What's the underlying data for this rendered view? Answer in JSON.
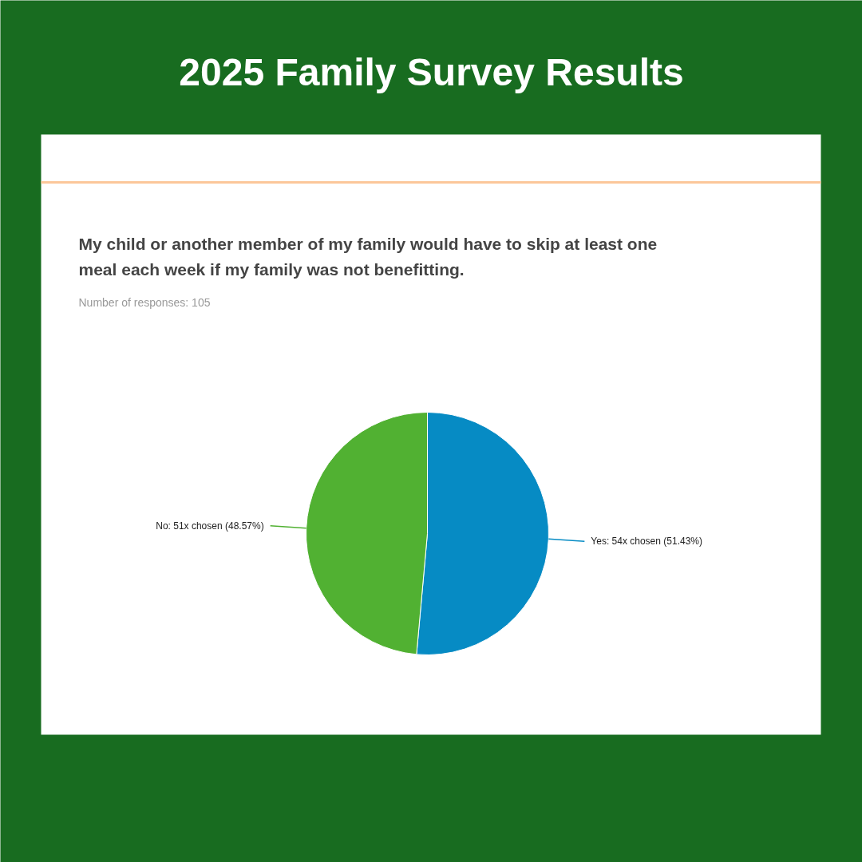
{
  "chart_data": {
    "type": "pie",
    "title": "2025 Family Survey Results",
    "subtitle": "My child or another member of my family would have to skip at least one meal each week if my family was not benefitting.",
    "annotations": [
      "Number of responses: 105"
    ],
    "categories": [
      "Yes",
      "No"
    ],
    "values": [
      54,
      51
    ],
    "value_labels": [
      "54x chosen (51.43%)",
      "51x chosen (48.57%)"
    ],
    "colors": [
      "#068bc4",
      "#51b132"
    ]
  }
}
